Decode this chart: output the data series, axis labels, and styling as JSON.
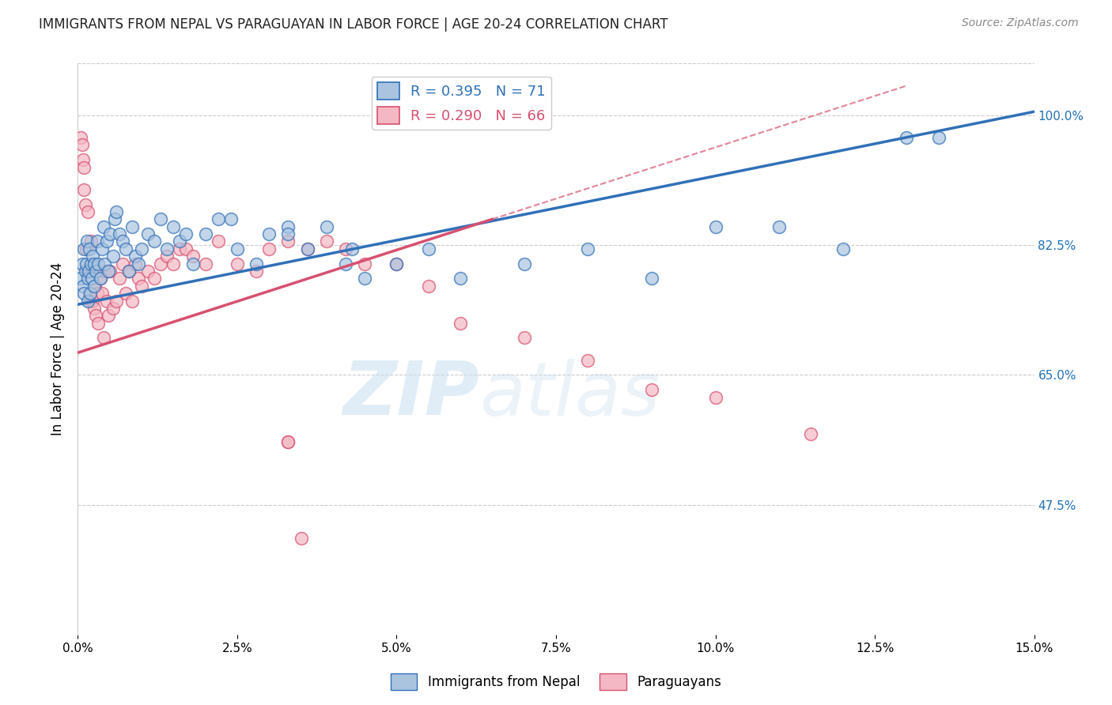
{
  "title": "IMMIGRANTS FROM NEPAL VS PARAGUAYAN IN LABOR FORCE | AGE 20-24 CORRELATION CHART",
  "source": "Source: ZipAtlas.com",
  "ylabel": "In Labor Force | Age 20-24",
  "xlim": [
    0.0,
    15.0
  ],
  "ylim": [
    30.0,
    107.0
  ],
  "yticks": [
    47.5,
    65.0,
    82.5,
    100.0
  ],
  "xticks": [
    0.0,
    2.5,
    5.0,
    7.5,
    10.0,
    12.5,
    15.0
  ],
  "blue_R": 0.395,
  "blue_N": 71,
  "pink_R": 0.29,
  "pink_N": 66,
  "blue_color": "#aac4e0",
  "pink_color": "#f4b8c4",
  "blue_line_color": "#3070b8",
  "pink_line_color": "#d85070",
  "watermark_zip": "ZIP",
  "watermark_atlas": "atlas",
  "background_color": "#ffffff",
  "legend_label_blue": "Immigrants from Nepal",
  "legend_label_pink": "Paraguayans",
  "blue_line_x0": 0.0,
  "blue_line_y0": 74.5,
  "blue_line_x1": 15.0,
  "blue_line_y1": 100.5,
  "pink_line_x0": 0.0,
  "pink_line_y0": 68.0,
  "pink_line_x1": 6.5,
  "pink_line_y1": 86.0,
  "pink_dash_x0": 6.5,
  "pink_dash_y0": 86.0,
  "pink_dash_x1": 13.0,
  "pink_dash_y1": 104.0,
  "nepal_x": [
    0.05,
    0.07,
    0.08,
    0.1,
    0.1,
    0.12,
    0.13,
    0.14,
    0.15,
    0.16,
    0.17,
    0.18,
    0.19,
    0.2,
    0.22,
    0.23,
    0.25,
    0.26,
    0.28,
    0.3,
    0.32,
    0.35,
    0.38,
    0.4,
    0.42,
    0.45,
    0.48,
    0.5,
    0.55,
    0.58,
    0.6,
    0.65,
    0.7,
    0.75,
    0.8,
    0.85,
    0.9,
    0.95,
    1.0,
    1.1,
    1.2,
    1.3,
    1.4,
    1.5,
    1.6,
    1.7,
    1.8,
    2.0,
    2.2,
    2.5,
    2.8,
    3.0,
    3.3,
    3.6,
    3.9,
    4.2,
    4.5,
    5.0,
    5.5,
    6.0,
    7.0,
    8.0,
    9.0,
    10.0,
    11.0,
    12.0,
    13.0,
    13.5,
    4.3,
    3.3,
    2.4
  ],
  "nepal_y": [
    78,
    80,
    77,
    76,
    82,
    79,
    80,
    83,
    78,
    75,
    79,
    82,
    76,
    80,
    78,
    81,
    77,
    80,
    79,
    83,
    80,
    78,
    82,
    85,
    80,
    83,
    79,
    84,
    81,
    86,
    87,
    84,
    83,
    82,
    79,
    85,
    81,
    80,
    82,
    84,
    83,
    86,
    82,
    85,
    83,
    84,
    80,
    84,
    86,
    82,
    80,
    84,
    85,
    82,
    85,
    80,
    78,
    80,
    82,
    78,
    80,
    82,
    78,
    85,
    85,
    82,
    97,
    97,
    82,
    84,
    86
  ],
  "paraguay_x": [
    0.05,
    0.07,
    0.08,
    0.1,
    0.1,
    0.12,
    0.13,
    0.15,
    0.16,
    0.17,
    0.18,
    0.19,
    0.2,
    0.22,
    0.23,
    0.25,
    0.27,
    0.28,
    0.3,
    0.32,
    0.35,
    0.38,
    0.4,
    0.42,
    0.45,
    0.48,
    0.5,
    0.55,
    0.6,
    0.65,
    0.7,
    0.75,
    0.8,
    0.85,
    0.9,
    0.95,
    1.0,
    1.1,
    1.2,
    1.3,
    1.4,
    1.5,
    1.6,
    1.7,
    1.8,
    2.0,
    2.2,
    2.5,
    2.8,
    3.0,
    3.3,
    3.6,
    3.9,
    4.2,
    4.5,
    5.0,
    5.5,
    6.0,
    7.0,
    8.0,
    9.0,
    10.0,
    11.5,
    3.3,
    3.3,
    3.5
  ],
  "paraguay_y": [
    97,
    96,
    94,
    93,
    90,
    88,
    82,
    87,
    79,
    79,
    76,
    75,
    83,
    79,
    75,
    74,
    77,
    73,
    76,
    72,
    78,
    76,
    70,
    79,
    75,
    73,
    79,
    74,
    75,
    78,
    80,
    76,
    79,
    75,
    80,
    78,
    77,
    79,
    78,
    80,
    81,
    80,
    82,
    82,
    81,
    80,
    83,
    80,
    79,
    82,
    83,
    82,
    83,
    82,
    80,
    80,
    77,
    72,
    70,
    67,
    63,
    62,
    57,
    56,
    56,
    43
  ]
}
